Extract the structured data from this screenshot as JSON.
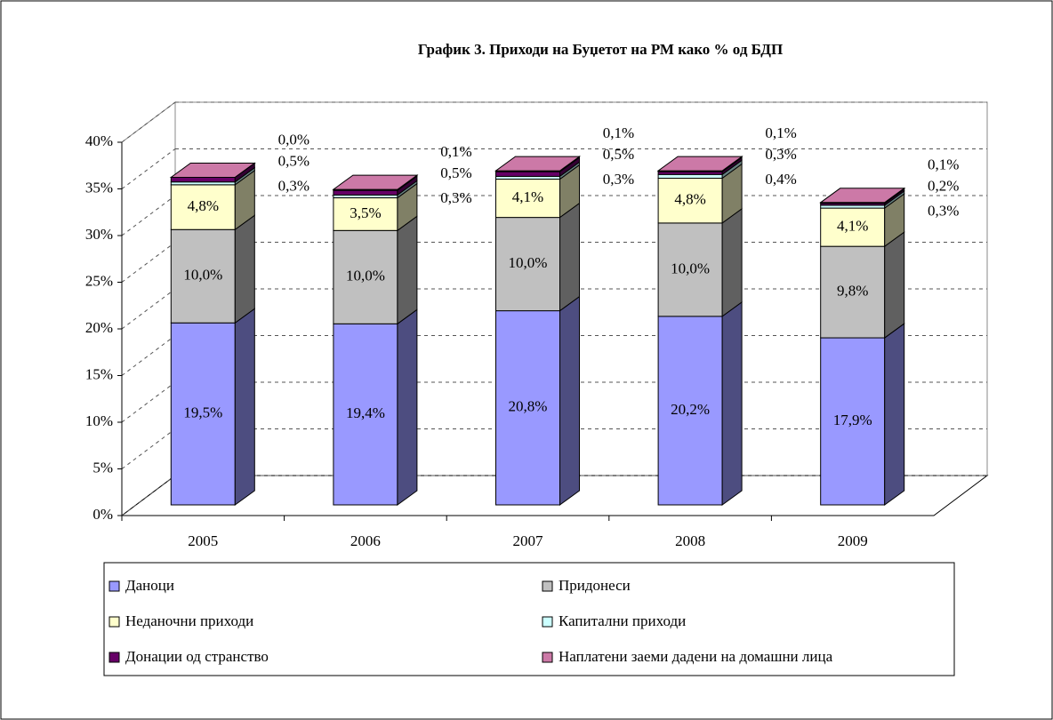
{
  "chart_data": {
    "type": "bar3d_stacked",
    "title": "График 3. Приходи на Буџетот на РМ како % од БДП",
    "categories": [
      "2005",
      "2006",
      "2007",
      "2008",
      "2009"
    ],
    "ylim": [
      0,
      40
    ],
    "yticks": [
      {
        "value": 0,
        "label": "0%"
      },
      {
        "value": 5,
        "label": "5%"
      },
      {
        "value": 10,
        "label": "10%"
      },
      {
        "value": 15,
        "label": "15%"
      },
      {
        "value": 20,
        "label": "20%"
      },
      {
        "value": 25,
        "label": "25%"
      },
      {
        "value": 30,
        "label": "30%"
      },
      {
        "value": 35,
        "label": "35%"
      },
      {
        "value": 40,
        "label": "40%"
      }
    ],
    "grid": true,
    "series": [
      {
        "name": "Даноци",
        "color": "#9999ff",
        "values": [
          19.5,
          19.4,
          20.8,
          20.2,
          17.9
        ],
        "value_labels": [
          "19,5%",
          "19,4%",
          "20,8%",
          "20,2%",
          "17,9%"
        ]
      },
      {
        "name": "Придонеси",
        "color": "#c0c0c0",
        "values": [
          10.0,
          10.0,
          10.0,
          10.0,
          9.8
        ],
        "value_labels": [
          "10,0%",
          "10,0%",
          "10,0%",
          "10,0%",
          "9,8%"
        ]
      },
      {
        "name": "Неданочни приходи",
        "color": "#ffffcc",
        "values": [
          4.8,
          3.5,
          4.1,
          4.8,
          4.1
        ],
        "value_labels": [
          "4,8%",
          "3,5%",
          "4,1%",
          "4,8%",
          "4,1%"
        ]
      },
      {
        "name": "Капитални приходи",
        "color": "#ccffff",
        "values": [
          0.3,
          0.3,
          0.3,
          0.4,
          0.3
        ],
        "value_labels": [
          "0,3%",
          "0,3%",
          "0,3%",
          "0,4%",
          "0,3%"
        ]
      },
      {
        "name": "Донации од странство",
        "color": "#660066",
        "values": [
          0.5,
          0.5,
          0.5,
          0.3,
          0.2
        ],
        "value_labels": [
          "0,5%",
          "0,5%",
          "0,5%",
          "0,3%",
          "0,2%"
        ]
      },
      {
        "name": "Наплатени заеми дадени на домашни лица",
        "color": "#cc79a7",
        "values": [
          0.0,
          0.1,
          0.1,
          0.1,
          0.1
        ],
        "value_labels": [
          "0,0%",
          "0,1%",
          "0,1%",
          "0,1%",
          "0,1%"
        ]
      }
    ]
  }
}
